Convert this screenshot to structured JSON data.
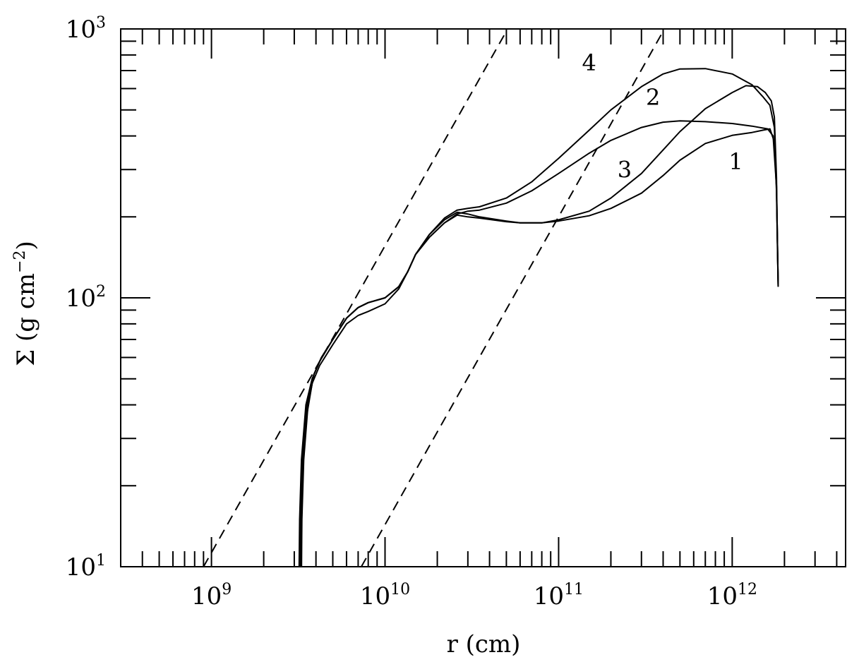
{
  "chart_data": {
    "type": "line",
    "x_scale": "log",
    "y_scale": "log",
    "xlim": [
      300000000.0,
      4500000000000.0
    ],
    "ylim": [
      10,
      1000
    ],
    "xlabel_text": "r (cm)",
    "ylabel_text": "Σ (g cm",
    "ylabel_exp": "−2",
    "ylabel_close": ")",
    "x_ticks": [
      {
        "base": "10",
        "exp": "9",
        "value": 1000000000.0
      },
      {
        "base": "10",
        "exp": "10",
        "value": 10000000000.0
      },
      {
        "base": "10",
        "exp": "11",
        "value": 100000000000.0
      },
      {
        "base": "10",
        "exp": "12",
        "value": 1000000000000.0
      }
    ],
    "y_ticks": [
      {
        "base": "10",
        "exp": "1",
        "value": 10
      },
      {
        "base": "10",
        "exp": "2",
        "value": 100
      },
      {
        "base": "10",
        "exp": "3",
        "value": 1000
      }
    ],
    "grid": false,
    "series": [
      {
        "name": "1",
        "style": "solid",
        "label_at": [
          1050000000000.0,
          300
        ],
        "points": [
          [
            3300000000.0,
            10
          ],
          [
            3300000000.0,
            15
          ],
          [
            3350000000.0,
            25
          ],
          [
            3500000000.0,
            35
          ],
          [
            3800000000.0,
            48
          ],
          [
            4200000000.0,
            56
          ],
          [
            5000000000.0,
            67
          ],
          [
            6000000000.0,
            80
          ],
          [
            7000000000.0,
            86
          ],
          [
            8000000000.0,
            89
          ],
          [
            10000000000.0,
            95
          ],
          [
            12000000000.0,
            108
          ],
          [
            13500000000.0,
            125
          ],
          [
            15000000000.0,
            145
          ],
          [
            18000000000.0,
            168
          ],
          [
            22000000000.0,
            190
          ],
          [
            26000000000.0,
            203
          ],
          [
            30000000000.0,
            200
          ],
          [
            35000000000.0,
            198
          ],
          [
            50000000000.0,
            192
          ],
          [
            60000000000.0,
            190
          ],
          [
            80000000000.0,
            190
          ],
          [
            100000000000.0,
            193
          ],
          [
            150000000000.0,
            202
          ],
          [
            200000000000.0,
            215
          ],
          [
            300000000000.0,
            245
          ],
          [
            400000000000.0,
            285
          ],
          [
            500000000000.0,
            325
          ],
          [
            700000000000.0,
            375
          ],
          [
            1000000000000.0,
            402
          ],
          [
            1300000000000.0,
            412
          ],
          [
            1500000000000.0,
            420
          ],
          [
            1650000000000.0,
            425
          ],
          [
            1750000000000.0,
            380
          ],
          [
            1800000000000.0,
            250
          ],
          [
            1820000000000.0,
            160
          ],
          [
            1840000000000.0,
            110
          ]
        ]
      },
      {
        "name": "2",
        "style": "solid",
        "label_at": [
          350000000000.0,
          520
        ],
        "points": [
          [
            3200000000.0,
            10
          ],
          [
            3220000000.0,
            15
          ],
          [
            3300000000.0,
            25
          ],
          [
            3500000000.0,
            40
          ],
          [
            3800000000.0,
            50
          ],
          [
            4200000000.0,
            58
          ],
          [
            5000000000.0,
            70
          ],
          [
            6000000000.0,
            84
          ],
          [
            7000000000.0,
            92
          ],
          [
            8000000000.0,
            96
          ],
          [
            10000000000.0,
            100
          ],
          [
            12000000000.0,
            110
          ],
          [
            13500000000.0,
            125
          ],
          [
            15000000000.0,
            145
          ],
          [
            18000000000.0,
            168
          ],
          [
            22000000000.0,
            190
          ],
          [
            26000000000.0,
            205
          ],
          [
            30000000000.0,
            210
          ],
          [
            35000000000.0,
            212
          ],
          [
            50000000000.0,
            225
          ],
          [
            70000000000.0,
            250
          ],
          [
            100000000000.0,
            290
          ],
          [
            150000000000.0,
            345
          ],
          [
            200000000000.0,
            385
          ],
          [
            300000000000.0,
            430
          ],
          [
            400000000000.0,
            450
          ],
          [
            500000000000.0,
            455
          ],
          [
            700000000000.0,
            452
          ],
          [
            1000000000000.0,
            445
          ],
          [
            1300000000000.0,
            435
          ],
          [
            1600000000000.0,
            425
          ],
          [
            1720000000000.0,
            400
          ],
          [
            1800000000000.0,
            260
          ],
          [
            1820000000000.0,
            170
          ],
          [
            1840000000000.0,
            110
          ]
        ]
      },
      {
        "name": "3",
        "style": "solid",
        "label_at": [
          240000000000.0,
          280
        ],
        "points": [
          [
            3250000000.0,
            10
          ],
          [
            3270000000.0,
            15
          ],
          [
            3350000000.0,
            25
          ],
          [
            3550000000.0,
            40
          ],
          [
            3900000000.0,
            52
          ],
          [
            4300000000.0,
            60
          ],
          [
            5000000000.0,
            70
          ],
          [
            6000000000.0,
            84
          ],
          [
            7000000000.0,
            92
          ],
          [
            8000000000.0,
            96
          ],
          [
            10000000000.0,
            100
          ],
          [
            12000000000.0,
            110
          ],
          [
            13500000000.0,
            125
          ],
          [
            15000000000.0,
            145
          ],
          [
            18000000000.0,
            172
          ],
          [
            22000000000.0,
            195
          ],
          [
            26000000000.0,
            208
          ],
          [
            30000000000.0,
            205
          ],
          [
            35000000000.0,
            200
          ],
          [
            50000000000.0,
            193
          ],
          [
            60000000000.0,
            190
          ],
          [
            80000000000.0,
            190
          ],
          [
            100000000000.0,
            195
          ],
          [
            150000000000.0,
            210
          ],
          [
            200000000000.0,
            235
          ],
          [
            300000000000.0,
            290
          ],
          [
            400000000000.0,
            355
          ],
          [
            500000000000.0,
            415
          ],
          [
            700000000000.0,
            505
          ],
          [
            1000000000000.0,
            580
          ],
          [
            1200000000000.0,
            615
          ],
          [
            1400000000000.0,
            610
          ],
          [
            1550000000000.0,
            580
          ],
          [
            1680000000000.0,
            540
          ],
          [
            1750000000000.0,
            470
          ],
          [
            1800000000000.0,
            280
          ],
          [
            1820000000000.0,
            170
          ],
          [
            1840000000000.0,
            110
          ]
        ]
      },
      {
        "name": "4",
        "style": "solid",
        "label_at": [
          150000000000.0,
          700
        ],
        "points": [
          [
            3300000000.0,
            10
          ],
          [
            3320000000.0,
            15
          ],
          [
            3400000000.0,
            25
          ],
          [
            3600000000.0,
            40
          ],
          [
            3900000000.0,
            52
          ],
          [
            4300000000.0,
            60
          ],
          [
            5000000000.0,
            70
          ],
          [
            6000000000.0,
            84
          ],
          [
            7000000000.0,
            92
          ],
          [
            8000000000.0,
            96
          ],
          [
            10000000000.0,
            100
          ],
          [
            12000000000.0,
            110
          ],
          [
            13500000000.0,
            125
          ],
          [
            15000000000.0,
            145
          ],
          [
            18000000000.0,
            172
          ],
          [
            22000000000.0,
            198
          ],
          [
            26000000000.0,
            212
          ],
          [
            30000000000.0,
            215
          ],
          [
            35000000000.0,
            218
          ],
          [
            50000000000.0,
            235
          ],
          [
            70000000000.0,
            270
          ],
          [
            100000000000.0,
            330
          ],
          [
            150000000000.0,
            420
          ],
          [
            200000000000.0,
            500
          ],
          [
            300000000000.0,
            610
          ],
          [
            400000000000.0,
            680
          ],
          [
            500000000000.0,
            710
          ],
          [
            700000000000.0,
            712
          ],
          [
            1000000000000.0,
            680
          ],
          [
            1300000000000.0,
            620
          ],
          [
            1500000000000.0,
            560
          ],
          [
            1650000000000.0,
            520
          ],
          [
            1750000000000.0,
            430
          ],
          [
            1800000000000.0,
            260
          ],
          [
            1820000000000.0,
            170
          ],
          [
            1840000000000.0,
            110
          ]
        ]
      },
      {
        "name": "",
        "style": "dashed",
        "points": [
          [
            900000000.0,
            10
          ],
          [
            50000000000.0,
            980
          ]
        ]
      },
      {
        "name": "",
        "style": "dashed",
        "points": [
          [
            7300000000.0,
            10
          ],
          [
            400000000000.0,
            980
          ]
        ]
      }
    ]
  }
}
